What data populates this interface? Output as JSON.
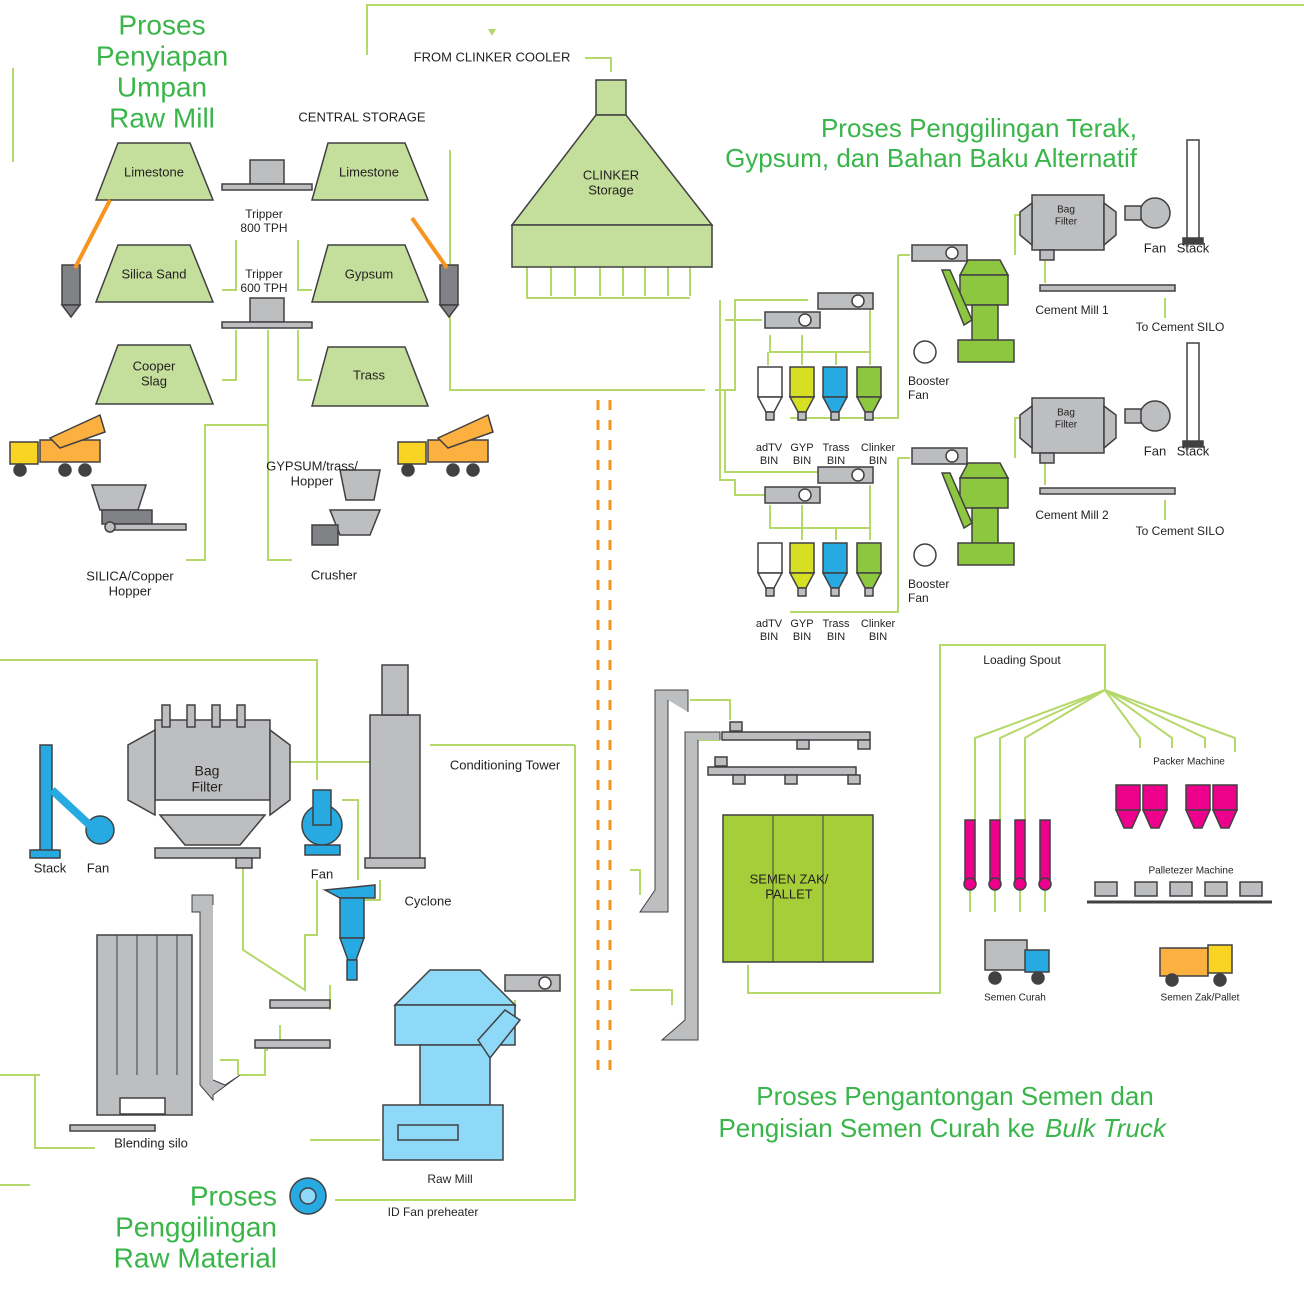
{
  "sections": [
    {
      "lines": [
        "Proses",
        "Penyiapan",
        "Umpan",
        "Raw Mill"
      ]
    },
    {
      "lines": [
        "Proses Penggilingan Terak,",
        "Gypsum, dan Bahan Baku Alternatif"
      ]
    },
    {
      "lines": [
        "Proses",
        "Penggilingan",
        "Raw Material"
      ]
    },
    {
      "lines": [
        "Proses Pengantongan Semen dan",
        "Pengisian Semen Curah ke"
      ],
      "emphasis": "Bulk Truck"
    }
  ],
  "labels": [
    [
      "FROM CLINKER COOLER"
    ],
    [
      "CENTRAL STORAGE"
    ],
    [
      "Limestone"
    ],
    [
      "Limestone"
    ],
    [
      "Tripper",
      "800 TPH"
    ],
    [
      "Silica Sand"
    ],
    [
      "Gypsum"
    ],
    [
      "Tripper",
      "600 TPH"
    ],
    [
      "Cooper",
      "Slag"
    ],
    [
      "Trass"
    ],
    [
      "CLINKER",
      "Storage"
    ],
    [
      "GYPSUM/trass/",
      "Hopper"
    ],
    [
      "SILICA/Copper",
      "Hopper"
    ],
    [
      "Crusher"
    ],
    [
      "Bag",
      "Filter"
    ],
    [
      "Fan"
    ],
    [
      "Stack"
    ],
    [
      "Cement Mill 1"
    ],
    [
      "To Cement SILO"
    ],
    [
      "Booster",
      "Fan"
    ],
    [
      "adTV",
      "BIN"
    ],
    [
      "GYP",
      "BIN"
    ],
    [
      "Trass",
      "BIN"
    ],
    [
      "Clinker",
      "BIN"
    ],
    [
      "Bag",
      "Filter"
    ],
    [
      "Fan"
    ],
    [
      "Stack"
    ],
    [
      "Cement Mill 2"
    ],
    [
      "To Cement SILO"
    ],
    [
      "Booster",
      "Fan"
    ],
    [
      "adTV",
      "BIN"
    ],
    [
      "GYP",
      "BIN"
    ],
    [
      "Trass",
      "BIN"
    ],
    [
      "Clinker",
      "BIN"
    ],
    [
      "Loading Spout"
    ],
    [
      "Packer Machine"
    ],
    [
      "Palletezer Machine"
    ],
    [
      "SEMEN ZAK/",
      "PALLET"
    ],
    [
      "Semen Curah"
    ],
    [
      "Semen Zak/Pallet"
    ],
    [
      "Conditioning Tower"
    ],
    [
      "Bag",
      "Filter"
    ],
    [
      "Stack"
    ],
    [
      "Fan"
    ],
    [
      "Fan"
    ],
    [
      "Cyclone"
    ],
    [
      "Blending silo"
    ],
    [
      "Raw Mill"
    ],
    [
      "ID Fan preheater"
    ]
  ]
}
